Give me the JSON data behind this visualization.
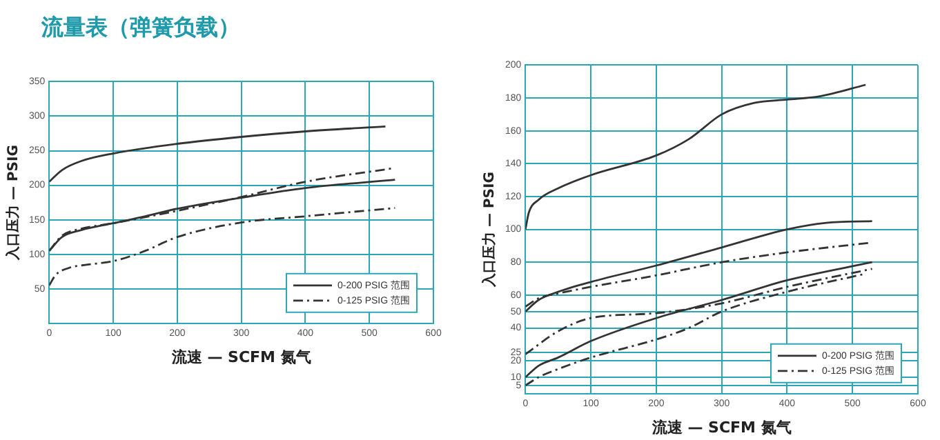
{
  "chart_data": [
    {
      "type": "line",
      "title": "流量表（弹簧负载）",
      "xlabel": "流速 — SCFM 氮气",
      "ylabel": "入口压力 — PSIG",
      "xlim": [
        0,
        600
      ],
      "xticks": [
        0,
        100,
        200,
        300,
        400,
        500,
        600
      ],
      "ylim": [
        0,
        350
      ],
      "yticks": [
        {
          "value": 0,
          "label": null
        },
        50,
        100,
        150,
        200,
        250,
        300,
        350
      ],
      "grid": true,
      "legend": "bottom right",
      "marker": "none",
      "series": [
        {
          "name": "0-200 PSIG 范围",
          "color": "#333333",
          "line_style": "solid",
          "x": [
            0,
            20,
            50,
            100,
            200,
            300,
            400,
            525
          ],
          "values": [
            205,
            222,
            235,
            246,
            260,
            270,
            278,
            285
          ]
        },
        {
          "color": "#333333",
          "line_style": "solid",
          "x": [
            0,
            20,
            50,
            100,
            150,
            200,
            300,
            400,
            540
          ],
          "values": [
            105,
            125,
            135,
            145,
            155,
            166,
            182,
            196,
            208
          ]
        },
        {
          "name": "0-125 PSIG 范围",
          "color": "#333333",
          "line_style": "dashed",
          "x": [
            0,
            20,
            50,
            100,
            200,
            300,
            400,
            540
          ],
          "values": [
            105,
            127,
            137,
            145,
            163,
            183,
            205,
            225
          ]
        },
        {
          "color": "#333333",
          "line_style": "dashed",
          "x": [
            0,
            10,
            30,
            60,
            100,
            150,
            200,
            300,
            400,
            540
          ],
          "values": [
            55,
            70,
            80,
            85,
            90,
            105,
            125,
            146,
            155,
            167
          ]
        }
      ]
    },
    {
      "type": "line",
      "xlabel": "流速 — SCFM 氮气",
      "ylabel": "入口压力 — PSIG",
      "xlim": [
        0,
        600
      ],
      "xticks": [
        0,
        100,
        200,
        300,
        400,
        500,
        600
      ],
      "ylim": [
        0,
        200
      ],
      "yticks": [
        {
          "value": 0,
          "label": null
        },
        5,
        10,
        20,
        25,
        40,
        50,
        60,
        80,
        100,
        120,
        140,
        160,
        180,
        200
      ],
      "grid": true,
      "legend": "bottom right",
      "marker": "none",
      "series": [
        {
          "name": "0-200 PSIG 范围",
          "color": "#333333",
          "line_style": "solid",
          "x": [
            0,
            5,
            20,
            50,
            100,
            200,
            250,
            300,
            350,
            400,
            450,
            520
          ],
          "values": [
            100,
            110,
            118,
            125,
            133,
            145,
            155,
            170,
            177,
            179,
            181,
            188
          ]
        },
        {
          "color": "#333333",
          "line_style": "solid",
          "x": [
            0,
            20,
            50,
            100,
            200,
            300,
            400,
            460,
            530
          ],
          "values": [
            50,
            57,
            62,
            68,
            78,
            89,
            100,
            104,
            105
          ]
        },
        {
          "color": "#333333",
          "line_style": "solid",
          "x": [
            0,
            20,
            50,
            100,
            200,
            300,
            400,
            530
          ],
          "values": [
            10,
            17,
            22,
            32,
            46,
            57,
            69,
            80
          ]
        },
        {
          "name": "0-125 PSIG 范围",
          "color": "#333333",
          "line_style": "dashed",
          "x": [
            0,
            20,
            50,
            100,
            200,
            300,
            400,
            530
          ],
          "values": [
            53,
            58,
            61,
            65,
            72,
            80,
            86,
            92
          ]
        },
        {
          "color": "#333333",
          "line_style": "dashed",
          "x": [
            0,
            50,
            100,
            200,
            300,
            400,
            530
          ],
          "values": [
            24,
            38,
            46,
            49,
            55,
            65,
            76
          ]
        },
        {
          "color": "#333333",
          "line_style": "dashed",
          "x": [
            0,
            20,
            50,
            100,
            200,
            250,
            300,
            400,
            520
          ],
          "values": [
            5,
            10,
            15,
            22,
            33,
            40,
            50,
            62,
            73
          ]
        }
      ]
    }
  ]
}
